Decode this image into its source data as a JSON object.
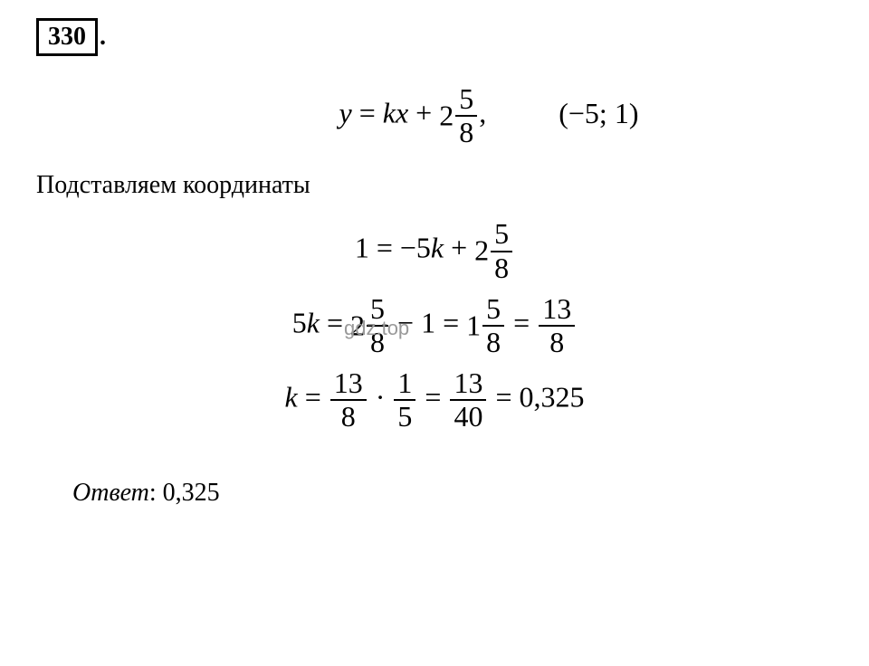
{
  "problemNumber": "330",
  "period": ".",
  "mainEquation": {
    "lhs": "y",
    "equals": " = ",
    "k": "k",
    "x": "x",
    "plus": " + ",
    "mixedInt": "2",
    "fracNum": "5",
    "fracDen": "8",
    "comma": ",",
    "point": "(−5; 1)"
  },
  "textLine": "Подставляем координаты",
  "watermark": "gdz.top",
  "eq1": {
    "lhs": "1",
    "equals": " = ",
    "minus": "−",
    "five": "5",
    "k": "k",
    "plus": " + ",
    "mixedInt": "2",
    "fracNum": "5",
    "fracDen": "8"
  },
  "eq2": {
    "five": "5",
    "k": "k",
    "equals": " = ",
    "mixedInt1": "2",
    "frac1Num": "5",
    "frac1Den": "8",
    "minus": " − ",
    "one": "1",
    "equals2": " = ",
    "mixedInt2": "1",
    "frac2Num": "5",
    "frac2Den": "8",
    "equals3": " = ",
    "frac3Num": "13",
    "frac3Den": "8"
  },
  "eq3": {
    "k": "k",
    "equals": " = ",
    "frac1Num": "13",
    "frac1Den": "8",
    "dot": " · ",
    "frac2Num": "1",
    "frac2Den": "5",
    "equals2": " = ",
    "frac3Num": "13",
    "frac3Den": "40",
    "equals3": " = ",
    "result": "0,325"
  },
  "answer": {
    "label": "Ответ",
    "colon": ": ",
    "value": "0,325"
  },
  "colors": {
    "background": "#ffffff",
    "text": "#000000",
    "watermark": "#999999"
  },
  "fontSizes": {
    "problemNumber": 28,
    "equation": 32,
    "text": 28,
    "watermark": 22,
    "answer": 28
  }
}
